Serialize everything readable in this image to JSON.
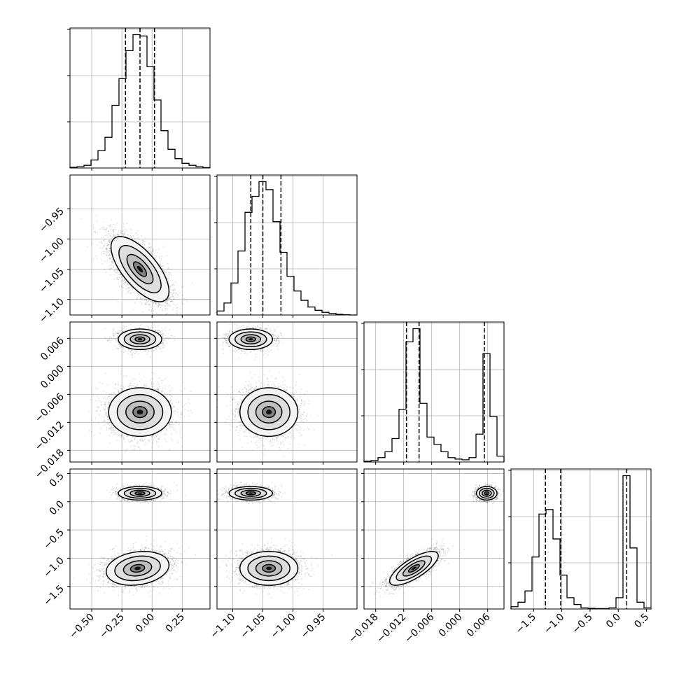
{
  "chart_data": {
    "type": "corner",
    "variables": [
      {
        "range": [
          -0.68,
          0.48
        ],
        "ticks": [
          -0.5,
          -0.25,
          0.0,
          0.25
        ],
        "tick_labels": [
          "−0.50",
          "−0.25",
          "0.00",
          "0.25"
        ],
        "quantiles": [
          -0.22,
          -0.1,
          0.02
        ],
        "hist_edges": [
          -0.68,
          -0.622,
          -0.564,
          -0.506,
          -0.448,
          -0.39,
          -0.332,
          -0.274,
          -0.216,
          -0.158,
          -0.1,
          -0.042,
          0.016,
          0.074,
          0.132,
          0.19,
          0.248,
          0.306,
          0.364,
          0.422,
          0.48
        ],
        "hist_counts": [
          0.5,
          1,
          2,
          6,
          13,
          23,
          47,
          67,
          88,
          100,
          99,
          76,
          51,
          28,
          14,
          7,
          3.5,
          2,
          1,
          0.3
        ]
      },
      {
        "range": [
          -1.126,
          -0.894
        ],
        "ticks": [
          -1.1,
          -1.05,
          -1.0,
          -0.95
        ],
        "tick_labels": [
          "−1.10",
          "−1.05",
          "−1.00",
          "−0.95"
        ],
        "quantiles": [
          -1.07,
          -1.05,
          -1.02
        ],
        "hist_edges": [
          -1.126,
          -1.1144,
          -1.1028,
          -1.0912,
          -1.0796,
          -1.068,
          -1.0564,
          -1.0448,
          -1.0332,
          -1.0216,
          -1.01,
          -0.9984,
          -0.9868,
          -0.9752,
          -0.9636,
          -0.952,
          -0.9404,
          -0.9288,
          -0.9172,
          -0.9056,
          -0.894
        ],
        "hist_counts": [
          3,
          9,
          24,
          48,
          77,
          89,
          100,
          94,
          70,
          47,
          29,
          18,
          11,
          6,
          3.5,
          2,
          1.2,
          0.5,
          0.2,
          0
        ]
      },
      {
        "range": [
          -0.0205,
          0.0095
        ],
        "ticks": [
          -0.018,
          -0.012,
          -0.006,
          0.0,
          0.006
        ],
        "tick_labels": [
          "−0.018",
          "−0.012",
          "−0.006",
          "0.000",
          "0.006"
        ],
        "quantiles": [
          -0.0114,
          -0.0087,
          0.0053
        ],
        "hist_edges": [
          -0.0205,
          -0.019,
          -0.0175,
          -0.016,
          -0.0145,
          -0.013,
          -0.0115,
          -0.01,
          -0.0085,
          -0.007,
          -0.0055,
          -0.004,
          -0.0025,
          -0.001,
          0.0005,
          0.002,
          0.0035,
          0.005,
          0.0065,
          0.008,
          0.0095
        ],
        "hist_counts": [
          0.5,
          1,
          3,
          7,
          16,
          36,
          82,
          91,
          40,
          17,
          12,
          7,
          3,
          2,
          1.5,
          3,
          19,
          74,
          31,
          4
        ]
      },
      {
        "range": [
          -1.9,
          0.58
        ],
        "ticks": [
          -1.5,
          -1.0,
          -0.5,
          0.0,
          0.5
        ],
        "tick_labels": [
          "−1.5",
          "−1.0",
          "−0.5",
          "0.0",
          "0.5"
        ],
        "quantiles": [
          -1.29,
          -1.02,
          0.15
        ],
        "hist_edges": [
          -1.9,
          -1.776,
          -1.652,
          -1.528,
          -1.404,
          -1.28,
          -1.156,
          -1.032,
          -0.908,
          -0.784,
          -0.66,
          -0.536,
          -0.412,
          -0.288,
          -0.164,
          -0.04,
          0.084,
          0.208,
          0.332,
          0.456,
          0.58
        ],
        "hist_counts": [
          1,
          3,
          8,
          23,
          42,
          44,
          31,
          15,
          5,
          2,
          0.5,
          0.3,
          0.2,
          0.2,
          0.5,
          5,
          59,
          27,
          3,
          0.5
        ]
      }
    ],
    "pairs": [
      {
        "row": 1,
        "col": 0,
        "blobs": [
          {
            "mx": -0.1,
            "my": -1.05,
            "sx": 0.12,
            "sy": 0.027,
            "rho": -0.68,
            "w": 1.0,
            "n": 4500
          }
        ]
      },
      {
        "row": 2,
        "col": 0,
        "blobs": [
          {
            "mx": -0.1,
            "my": 0.0058,
            "sx": 0.09,
            "sy": 0.0011,
            "rho": 0.0,
            "w": 0.35,
            "n": 1800
          },
          {
            "mx": -0.1,
            "my": -0.0098,
            "sx": 0.13,
            "sy": 0.0026,
            "rho": 0.0,
            "w": 0.65,
            "n": 3300
          }
        ]
      },
      {
        "row": 2,
        "col": 1,
        "blobs": [
          {
            "mx": -1.07,
            "my": 0.0058,
            "sx": 0.018,
            "sy": 0.0011,
            "rho": 0.0,
            "w": 0.35,
            "n": 1800
          },
          {
            "mx": -1.04,
            "my": -0.0098,
            "sx": 0.024,
            "sy": 0.0026,
            "rho": 0.0,
            "w": 0.65,
            "n": 3300
          }
        ]
      },
      {
        "row": 3,
        "col": 0,
        "blobs": [
          {
            "mx": -0.1,
            "my": 0.15,
            "sx": 0.09,
            "sy": 0.06,
            "rho": 0.0,
            "w": 0.35,
            "n": 1800
          },
          {
            "mx": -0.12,
            "my": -1.18,
            "sx": 0.13,
            "sy": 0.15,
            "rho": 0.2,
            "w": 0.65,
            "n": 3300
          }
        ]
      },
      {
        "row": 3,
        "col": 1,
        "blobs": [
          {
            "mx": -1.07,
            "my": 0.15,
            "sx": 0.018,
            "sy": 0.06,
            "rho": 0.0,
            "w": 0.35,
            "n": 1800
          },
          {
            "mx": -1.04,
            "my": -1.18,
            "sx": 0.024,
            "sy": 0.15,
            "rho": 0.0,
            "w": 0.65,
            "n": 3300
          }
        ]
      },
      {
        "row": 3,
        "col": 2,
        "blobs": [
          {
            "mx": 0.0058,
            "my": 0.15,
            "sx": 0.0011,
            "sy": 0.06,
            "rho": 0.0,
            "w": 0.35,
            "n": 1800
          },
          {
            "mx": -0.0098,
            "my": -1.18,
            "sx": 0.0026,
            "sy": 0.15,
            "rho": 0.75,
            "w": 0.65,
            "n": 3300
          }
        ]
      }
    ],
    "grid": true
  }
}
